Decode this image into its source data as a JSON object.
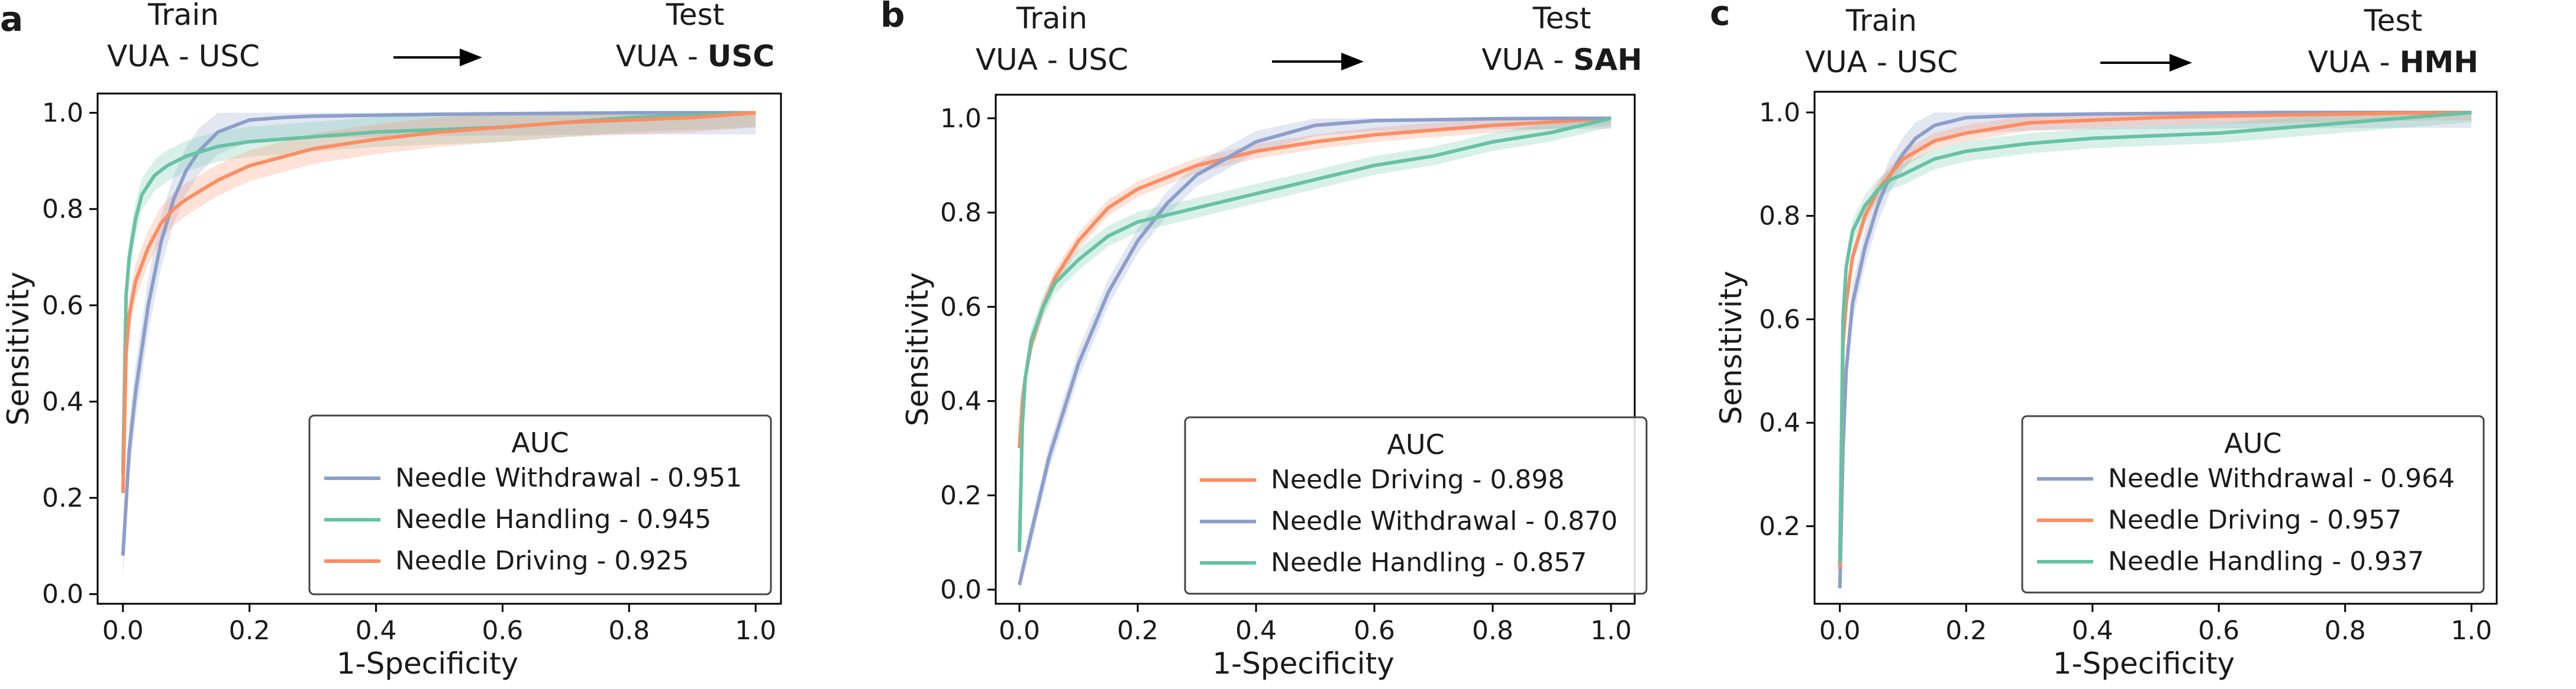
{
  "chart_data": [
    {
      "type": "line",
      "panel_label": "a",
      "header": {
        "train_title": "Train",
        "train_value": "VUA - USC",
        "test_title": "Test",
        "test_prefix": "VUA - ",
        "test_site": "USC"
      },
      "xlabel": "1-Specificity",
      "ylabel": "Sensitivity",
      "xlim": [
        -0.04,
        1.04
      ],
      "ylim": [
        -0.02,
        1.04
      ],
      "xticks": [
        "0.0",
        "0.2",
        "0.4",
        "0.6",
        "0.8",
        "1.0"
      ],
      "yticks": [
        "0.0",
        "0.2",
        "0.4",
        "0.6",
        "0.8",
        "1.0"
      ],
      "legend_title": "AUC",
      "legend_position": "lower-right",
      "series": [
        {
          "name": "Needle Withdrawal - 0.951",
          "color": "#8c9ecb",
          "band": 0.06,
          "x": [
            0,
            0.01,
            0.02,
            0.04,
            0.06,
            0.08,
            0.1,
            0.12,
            0.15,
            0.2,
            0.25,
            0.3,
            0.4,
            0.5,
            0.6,
            0.7,
            0.8,
            0.9,
            1.0
          ],
          "y": [
            0.08,
            0.3,
            0.42,
            0.6,
            0.73,
            0.82,
            0.88,
            0.92,
            0.96,
            0.985,
            0.99,
            0.993,
            0.995,
            0.997,
            0.998,
            0.999,
            1.0,
            1.0,
            1.0
          ]
        },
        {
          "name": "Needle Handling - 0.945",
          "color": "#66c2a5",
          "band": 0.04,
          "x": [
            0,
            0.005,
            0.01,
            0.02,
            0.03,
            0.05,
            0.07,
            0.1,
            0.15,
            0.2,
            0.3,
            0.4,
            0.5,
            0.6,
            0.7,
            0.8,
            0.9,
            1.0
          ],
          "y": [
            0.25,
            0.62,
            0.7,
            0.78,
            0.83,
            0.87,
            0.89,
            0.91,
            0.93,
            0.94,
            0.95,
            0.96,
            0.965,
            0.97,
            0.98,
            0.99,
            0.995,
            1.0
          ]
        },
        {
          "name": "Needle Driving - 0.925",
          "color": "#fc8d62",
          "band": 0.04,
          "x": [
            0,
            0.005,
            0.01,
            0.02,
            0.04,
            0.06,
            0.08,
            0.1,
            0.15,
            0.2,
            0.3,
            0.4,
            0.5,
            0.6,
            0.7,
            0.8,
            0.9,
            1.0
          ],
          "y": [
            0.21,
            0.5,
            0.58,
            0.65,
            0.72,
            0.77,
            0.8,
            0.82,
            0.86,
            0.89,
            0.925,
            0.945,
            0.96,
            0.97,
            0.98,
            0.985,
            0.99,
            1.0
          ]
        }
      ]
    },
    {
      "type": "line",
      "panel_label": "b",
      "header": {
        "train_title": "Train",
        "train_value": "VUA - USC",
        "test_title": "Test",
        "test_prefix": "VUA - ",
        "test_site": "SAH"
      },
      "xlabel": "1-Specificity",
      "ylabel": "Sensitivity",
      "xlim": [
        -0.04,
        1.04
      ],
      "ylim": [
        -0.03,
        1.05
      ],
      "xticks": [
        "0.0",
        "0.2",
        "0.4",
        "0.6",
        "0.8",
        "1.0"
      ],
      "yticks": [
        "0.0",
        "0.2",
        "0.4",
        "0.6",
        "0.8",
        "1.0"
      ],
      "legend_title": "AUC",
      "legend_position": "lower-right",
      "series": [
        {
          "name": "Needle Driving - 0.898",
          "color": "#fc8d62",
          "band": 0.02,
          "x": [
            0,
            0.005,
            0.01,
            0.02,
            0.04,
            0.06,
            0.08,
            0.1,
            0.15,
            0.2,
            0.3,
            0.4,
            0.5,
            0.6,
            0.7,
            0.8,
            0.9,
            1.0
          ],
          "y": [
            0.3,
            0.4,
            0.45,
            0.52,
            0.6,
            0.66,
            0.7,
            0.74,
            0.81,
            0.85,
            0.9,
            0.93,
            0.95,
            0.965,
            0.975,
            0.985,
            0.992,
            1.0
          ]
        },
        {
          "name": "Needle Withdrawal - 0.870",
          "color": "#8c9ecb",
          "band": 0.03,
          "x": [
            0,
            0.02,
            0.05,
            0.08,
            0.1,
            0.15,
            0.2,
            0.25,
            0.3,
            0.4,
            0.5,
            0.6,
            0.7,
            0.8,
            0.9,
            1.0
          ],
          "y": [
            0.01,
            0.12,
            0.28,
            0.4,
            0.48,
            0.63,
            0.74,
            0.82,
            0.88,
            0.95,
            0.985,
            0.995,
            0.997,
            0.999,
            1.0,
            1.0
          ]
        },
        {
          "name": "Needle Handling - 0.857",
          "color": "#66c2a5",
          "band": 0.025,
          "x": [
            0,
            0.005,
            0.01,
            0.02,
            0.04,
            0.06,
            0.1,
            0.15,
            0.2,
            0.3,
            0.4,
            0.5,
            0.6,
            0.7,
            0.8,
            0.9,
            1.0
          ],
          "y": [
            0.08,
            0.35,
            0.45,
            0.53,
            0.6,
            0.65,
            0.7,
            0.75,
            0.78,
            0.81,
            0.84,
            0.87,
            0.9,
            0.92,
            0.95,
            0.97,
            1.0
          ]
        }
      ]
    },
    {
      "type": "line",
      "panel_label": "c",
      "header": {
        "train_title": "Train",
        "train_value": "VUA - USC",
        "test_title": "Test",
        "test_prefix": "VUA - ",
        "test_site": "HMH"
      },
      "xlabel": "1-Specificity",
      "ylabel": "Sensitivity",
      "xlim": [
        -0.04,
        1.04
      ],
      "ylim": [
        0.05,
        1.04
      ],
      "xticks": [
        "0.0",
        "0.2",
        "0.4",
        "0.6",
        "0.8",
        "1.0"
      ],
      "yticks": [
        "0.2",
        "0.4",
        "0.6",
        "0.8",
        "1.0"
      ],
      "legend_title": "AUC",
      "legend_position": "lower-right",
      "series": [
        {
          "name": "Needle Withdrawal - 0.964",
          "color": "#8c9ecb",
          "band": 0.04,
          "x": [
            0,
            0.005,
            0.01,
            0.02,
            0.04,
            0.06,
            0.08,
            0.1,
            0.12,
            0.15,
            0.2,
            0.3,
            0.4,
            0.5,
            0.6,
            0.7,
            0.8,
            0.9,
            1.0
          ],
          "y": [
            0.08,
            0.35,
            0.5,
            0.63,
            0.74,
            0.82,
            0.88,
            0.92,
            0.95,
            0.975,
            0.99,
            0.995,
            0.997,
            0.998,
            0.999,
            1.0,
            1.0,
            1.0,
            1.0
          ]
        },
        {
          "name": "Needle Driving - 0.957",
          "color": "#fc8d62",
          "band": 0.02,
          "x": [
            0,
            0.005,
            0.01,
            0.02,
            0.04,
            0.06,
            0.08,
            0.1,
            0.15,
            0.2,
            0.3,
            0.4,
            0.5,
            0.6,
            0.7,
            0.8,
            0.9,
            1.0
          ],
          "y": [
            0.12,
            0.55,
            0.63,
            0.72,
            0.8,
            0.85,
            0.88,
            0.91,
            0.945,
            0.96,
            0.98,
            0.985,
            0.99,
            0.993,
            0.995,
            0.997,
            0.999,
            1.0
          ]
        },
        {
          "name": "Needle Handling - 0.937",
          "color": "#66c2a5",
          "band": 0.025,
          "x": [
            0,
            0.005,
            0.01,
            0.02,
            0.04,
            0.06,
            0.08,
            0.1,
            0.15,
            0.2,
            0.3,
            0.4,
            0.5,
            0.6,
            0.7,
            0.8,
            0.9,
            1.0
          ],
          "y": [
            0.13,
            0.6,
            0.7,
            0.77,
            0.82,
            0.85,
            0.87,
            0.88,
            0.91,
            0.925,
            0.94,
            0.95,
            0.955,
            0.96,
            0.97,
            0.98,
            0.99,
            1.0
          ]
        }
      ]
    }
  ]
}
